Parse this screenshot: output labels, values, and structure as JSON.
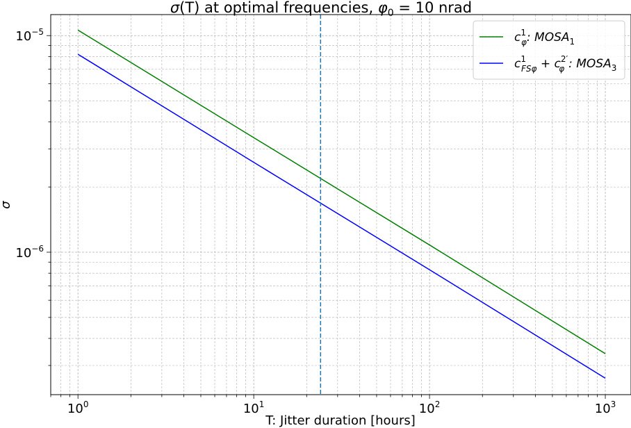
{
  "chart_data": {
    "type": "line",
    "title": "σ(T) at optimal frequencies, φ₀ = 10 nrad",
    "xlabel": "T: Jitter duration [hours]",
    "ylabel": "σ",
    "xscale": "log",
    "yscale": "log",
    "xlim": [
      0.7,
      1400
    ],
    "ylim": [
      2.2e-07,
      1.25e-05
    ],
    "x_ticks": [
      {
        "value": 1,
        "base": "10",
        "exp": "0"
      },
      {
        "value": 10,
        "base": "10",
        "exp": "1"
      },
      {
        "value": 100,
        "base": "10",
        "exp": "2"
      },
      {
        "value": 1000,
        "base": "10",
        "exp": "3"
      }
    ],
    "y_ticks": [
      {
        "value": 1e-06,
        "base": "10",
        "exp": "−6"
      },
      {
        "value": 1e-05,
        "base": "10",
        "exp": "−5"
      }
    ],
    "grid": true,
    "legend_position": "top-right",
    "vline": {
      "x": 24,
      "color": "#1f77b4",
      "style": "dashed"
    },
    "series": [
      {
        "name": "c_φ^1 : MOSA_1",
        "color": "#008000",
        "x": [
          1,
          10,
          100,
          1000
        ],
        "y": [
          1.06e-05,
          3.38e-06,
          1.08e-06,
          3.4e-07
        ]
      },
      {
        "name": "c_FSφ^1 + c_φ^2' : MOSA_3",
        "color": "#0000ff",
        "x": [
          1,
          10,
          100,
          1000
        ],
        "y": [
          8.2e-06,
          2.6e-06,
          8.3e-07,
          2.62e-07
        ]
      }
    ],
    "legend": [
      {
        "main": "c",
        "sup": "1",
        "sub": "φ",
        "rest": ": MOSA",
        "rest_sub": "1"
      },
      {
        "main1": "c",
        "sup1": "1",
        "sub1": "FSφ",
        "plus": " + c",
        "sup2": "2′",
        "sub2": "φ",
        "rest": ": MOSA",
        "rest_sub": "3"
      }
    ],
    "title_parts": {
      "a": "σ",
      "b": "(T) at optimal frequencies, ",
      "c": "φ",
      "d": "0",
      "e": " = 10 nrad"
    }
  }
}
